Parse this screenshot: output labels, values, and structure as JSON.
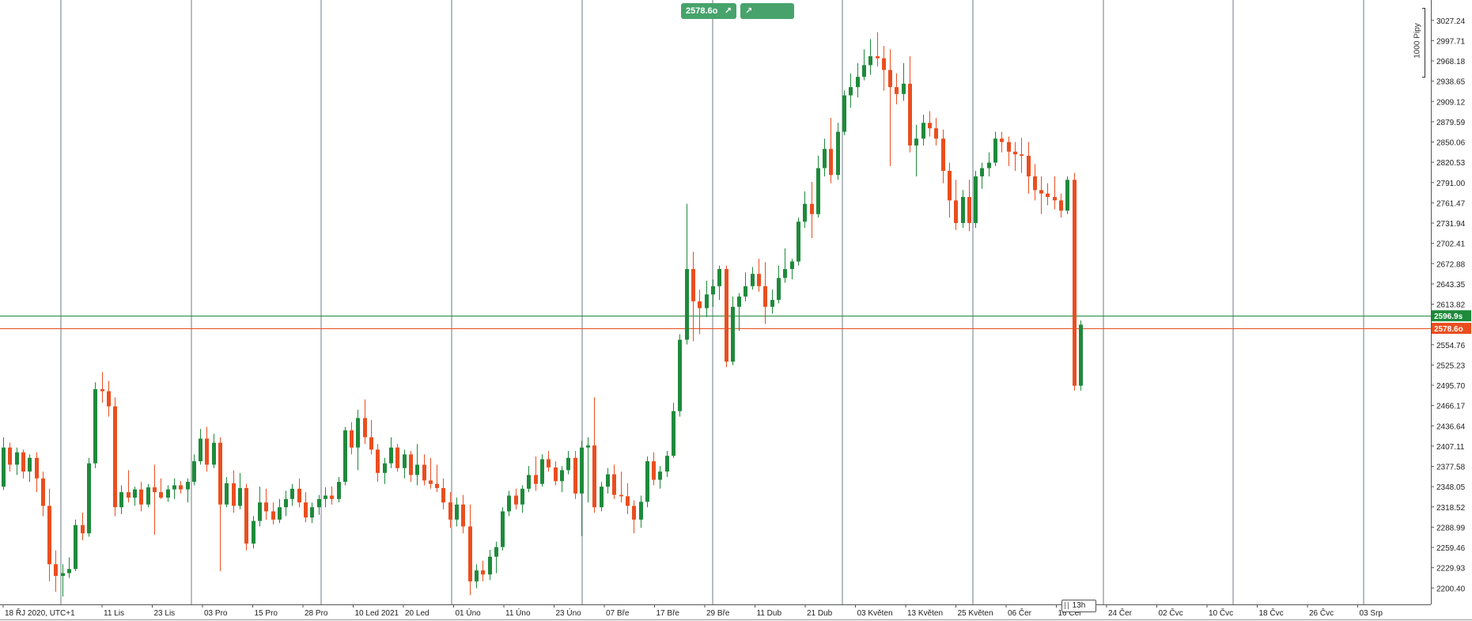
{
  "buttons": {
    "sell_label": "2578.6o",
    "buy_label": "2596.9s"
  },
  "pip_scale_label": "1000 Pipy",
  "timeframe_label": "13h",
  "colors": {
    "up": "#1e8a3b",
    "down": "#ea4e1f",
    "green_line": "#1e8a3b",
    "red_line": "#ea4e1f",
    "grid": "#6d7b86",
    "axis": "#222222"
  },
  "chart_data": {
    "type": "candlestick",
    "title": "",
    "xlabel": "",
    "ylabel": "",
    "ylim": [
      2176.5,
      3050
    ],
    "y_ticks": [
      2200.4,
      2229.93,
      2259.46,
      2288.99,
      2318.52,
      2348.05,
      2377.58,
      2407.11,
      2436.64,
      2466.17,
      2495.7,
      2525.23,
      2554.76,
      2613.82,
      2643.35,
      2672.88,
      2702.41,
      2731.94,
      2761.47,
      2791.0,
      2820.53,
      2850.06,
      2879.59,
      2909.12,
      2938.65,
      2968.18,
      2997.71,
      3027.24
    ],
    "x_labels": [
      "18 ŘJ 2020, UTC+1",
      "11 Lis",
      "23 Lis",
      "03 Pro",
      "15 Pro",
      "28 Pro",
      "10 Led 2021",
      "20 Led",
      "01 Úno",
      "11 Úno",
      "23 Úno",
      "07 Bře",
      "17 Bře",
      "29 Bře",
      "11 Dub",
      "21 Dub",
      "03 Květen",
      "13 Květen",
      "25 Květen",
      "06 Čer",
      "16 Čer",
      "24 Čer",
      "02 Čvc",
      "10 Čvc",
      "18 Čvc",
      "26 Čvc",
      "03 Srp"
    ],
    "separators": 10,
    "lines": [
      {
        "name": "buy",
        "price": 2596.9,
        "label": "2596.9s",
        "color": "#1e8a3b"
      },
      {
        "name": "sell",
        "price": 2578.6,
        "label": "2578.6o",
        "color": "#ea4e1f"
      }
    ],
    "candles": [
      [
        2348,
        2420,
        2343,
        2405
      ],
      [
        2405,
        2412,
        2370,
        2380
      ],
      [
        2380,
        2405,
        2365,
        2398
      ],
      [
        2398,
        2402,
        2360,
        2370
      ],
      [
        2370,
        2395,
        2355,
        2390
      ],
      [
        2390,
        2398,
        2340,
        2360
      ],
      [
        2360,
        2370,
        2305,
        2320
      ],
      [
        2320,
        2345,
        2210,
        2235
      ],
      [
        2235,
        2255,
        2195,
        2218
      ],
      [
        2218,
        2235,
        2188,
        2222
      ],
      [
        2222,
        2245,
        2215,
        2228
      ],
      [
        2228,
        2300,
        2225,
        2292
      ],
      [
        2292,
        2310,
        2270,
        2280
      ],
      [
        2280,
        2390,
        2275,
        2382
      ],
      [
        2382,
        2500,
        2375,
        2490
      ],
      [
        2490,
        2515,
        2470,
        2487
      ],
      [
        2487,
        2502,
        2450,
        2465
      ],
      [
        2465,
        2478,
        2305,
        2318
      ],
      [
        2318,
        2350,
        2308,
        2340
      ],
      [
        2340,
        2372,
        2325,
        2332
      ],
      [
        2332,
        2348,
        2320,
        2344
      ],
      [
        2344,
        2355,
        2312,
        2322
      ],
      [
        2322,
        2352,
        2318,
        2347
      ],
      [
        2347,
        2380,
        2278,
        2340
      ],
      [
        2340,
        2360,
        2330,
        2332
      ],
      [
        2332,
        2350,
        2326,
        2344
      ],
      [
        2344,
        2360,
        2330,
        2350
      ],
      [
        2350,
        2356,
        2338,
        2344
      ],
      [
        2344,
        2360,
        2325,
        2355
      ],
      [
        2355,
        2395,
        2350,
        2385
      ],
      [
        2385,
        2432,
        2380,
        2418
      ],
      [
        2418,
        2435,
        2370,
        2380
      ],
      [
        2380,
        2425,
        2375,
        2412
      ],
      [
        2412,
        2420,
        2225,
        2322
      ],
      [
        2322,
        2362,
        2318,
        2353
      ],
      [
        2353,
        2372,
        2310,
        2320
      ],
      [
        2320,
        2368,
        2315,
        2346
      ],
      [
        2346,
        2352,
        2255,
        2265
      ],
      [
        2265,
        2305,
        2258,
        2298
      ],
      [
        2298,
        2348,
        2290,
        2325
      ],
      [
        2325,
        2345,
        2300,
        2312
      ],
      [
        2312,
        2325,
        2293,
        2300
      ],
      [
        2300,
        2330,
        2295,
        2318
      ],
      [
        2318,
        2342,
        2305,
        2330
      ],
      [
        2330,
        2352,
        2320,
        2345
      ],
      [
        2345,
        2360,
        2318,
        2325
      ],
      [
        2325,
        2340,
        2296,
        2303
      ],
      [
        2303,
        2325,
        2295,
        2318
      ],
      [
        2318,
        2336,
        2307,
        2330
      ],
      [
        2330,
        2347,
        2318,
        2335
      ],
      [
        2335,
        2348,
        2322,
        2330
      ],
      [
        2330,
        2362,
        2325,
        2355
      ],
      [
        2355,
        2435,
        2350,
        2430
      ],
      [
        2430,
        2442,
        2395,
        2405
      ],
      [
        2405,
        2460,
        2372,
        2448
      ],
      [
        2448,
        2475,
        2410,
        2420
      ],
      [
        2420,
        2445,
        2395,
        2402
      ],
      [
        2402,
        2410,
        2355,
        2368
      ],
      [
        2368,
        2390,
        2352,
        2382
      ],
      [
        2382,
        2420,
        2375,
        2405
      ],
      [
        2405,
        2410,
        2370,
        2375
      ],
      [
        2375,
        2402,
        2360,
        2395
      ],
      [
        2395,
        2400,
        2355,
        2365
      ],
      [
        2365,
        2410,
        2350,
        2380
      ],
      [
        2380,
        2395,
        2350,
        2357
      ],
      [
        2357,
        2390,
        2345,
        2352
      ],
      [
        2352,
        2380,
        2340,
        2346
      ],
      [
        2346,
        2360,
        2315,
        2325
      ],
      [
        2325,
        2340,
        2288,
        2300
      ],
      [
        2300,
        2332,
        2290,
        2322
      ],
      [
        2322,
        2336,
        2280,
        2290
      ],
      [
        2290,
        2322,
        2190,
        2210
      ],
      [
        2210,
        2235,
        2200,
        2226
      ],
      [
        2226,
        2240,
        2210,
        2220
      ],
      [
        2220,
        2256,
        2212,
        2246
      ],
      [
        2246,
        2268,
        2222,
        2260
      ],
      [
        2260,
        2318,
        2255,
        2312
      ],
      [
        2312,
        2342,
        2305,
        2335
      ],
      [
        2335,
        2345,
        2315,
        2322
      ],
      [
        2322,
        2350,
        2310,
        2345
      ],
      [
        2345,
        2378,
        2340,
        2365
      ],
      [
        2365,
        2392,
        2342,
        2352
      ],
      [
        2352,
        2395,
        2348,
        2388
      ],
      [
        2388,
        2400,
        2370,
        2376
      ],
      [
        2376,
        2385,
        2350,
        2356
      ],
      [
        2356,
        2378,
        2340,
        2372
      ],
      [
        2372,
        2400,
        2366,
        2390
      ],
      [
        2390,
        2400,
        2330,
        2338
      ],
      [
        2338,
        2415,
        2276,
        2405
      ],
      [
        2405,
        2420,
        2325,
        2408
      ],
      [
        2408,
        2478,
        2310,
        2318
      ],
      [
        2318,
        2355,
        2312,
        2348
      ],
      [
        2348,
        2375,
        2338,
        2366
      ],
      [
        2366,
        2380,
        2330,
        2336
      ],
      [
        2336,
        2370,
        2325,
        2334
      ],
      [
        2334,
        2353,
        2308,
        2320
      ],
      [
        2320,
        2328,
        2280,
        2300
      ],
      [
        2300,
        2335,
        2288,
        2326
      ],
      [
        2326,
        2392,
        2318,
        2385
      ],
      [
        2385,
        2398,
        2350,
        2358
      ],
      [
        2358,
        2378,
        2345,
        2370
      ],
      [
        2370,
        2400,
        2362,
        2393
      ],
      [
        2393,
        2470,
        2390,
        2458
      ],
      [
        2458,
        2570,
        2450,
        2562
      ],
      [
        2562,
        2760,
        2555,
        2665
      ],
      [
        2665,
        2690,
        2560,
        2618
      ],
      [
        2618,
        2635,
        2570,
        2608
      ],
      [
        2608,
        2648,
        2595,
        2628
      ],
      [
        2628,
        2650,
        2610,
        2640
      ],
      [
        2640,
        2670,
        2620,
        2665
      ],
      [
        2665,
        2670,
        2522,
        2530
      ],
      [
        2530,
        2625,
        2525,
        2610
      ],
      [
        2610,
        2630,
        2575,
        2625
      ],
      [
        2625,
        2660,
        2618,
        2640
      ],
      [
        2640,
        2668,
        2635,
        2658
      ],
      [
        2658,
        2680,
        2632,
        2640
      ],
      [
        2640,
        2675,
        2585,
        2610
      ],
      [
        2610,
        2635,
        2600,
        2620
      ],
      [
        2620,
        2670,
        2615,
        2652
      ],
      [
        2652,
        2695,
        2645,
        2665
      ],
      [
        2665,
        2680,
        2650,
        2676
      ],
      [
        2676,
        2740,
        2670,
        2734
      ],
      [
        2734,
        2778,
        2725,
        2760
      ],
      [
        2760,
        2792,
        2710,
        2745
      ],
      [
        2745,
        2830,
        2740,
        2812
      ],
      [
        2812,
        2855,
        2800,
        2840
      ],
      [
        2840,
        2885,
        2790,
        2802
      ],
      [
        2802,
        2878,
        2795,
        2865
      ],
      [
        2865,
        2925,
        2860,
        2918
      ],
      [
        2918,
        2950,
        2900,
        2930
      ],
      [
        2930,
        2965,
        2915,
        2945
      ],
      [
        2945,
        2985,
        2940,
        2962
      ],
      [
        2962,
        3000,
        2948,
        2975
      ],
      [
        2975,
        3010,
        2960,
        2972
      ],
      [
        2972,
        2990,
        2925,
        2955
      ],
      [
        2955,
        2985,
        2815,
        2930
      ],
      [
        2930,
        2950,
        2905,
        2920
      ],
      [
        2920,
        2965,
        2910,
        2935
      ],
      [
        2935,
        2975,
        2835,
        2845
      ],
      [
        2845,
        2875,
        2800,
        2855
      ],
      [
        2855,
        2890,
        2845,
        2878
      ],
      [
        2878,
        2895,
        2858,
        2870
      ],
      [
        2870,
        2885,
        2845,
        2855
      ],
      [
        2855,
        2868,
        2790,
        2808
      ],
      [
        2808,
        2820,
        2740,
        2765
      ],
      [
        2765,
        2795,
        2722,
        2732
      ],
      [
        2732,
        2780,
        2725,
        2770
      ],
      [
        2770,
        2795,
        2720,
        2732
      ],
      [
        2732,
        2808,
        2725,
        2800
      ],
      [
        2800,
        2820,
        2782,
        2812
      ],
      [
        2812,
        2835,
        2800,
        2820
      ],
      [
        2820,
        2865,
        2815,
        2855
      ],
      [
        2855,
        2865,
        2835,
        2850
      ],
      [
        2850,
        2858,
        2815,
        2836
      ],
      [
        2836,
        2850,
        2808,
        2832
      ],
      [
        2832,
        2856,
        2805,
        2830
      ],
      [
        2830,
        2850,
        2775,
        2800
      ],
      [
        2800,
        2818,
        2765,
        2780
      ],
      [
        2780,
        2800,
        2745,
        2775
      ],
      [
        2775,
        2790,
        2758,
        2770
      ],
      [
        2770,
        2800,
        2752,
        2765
      ],
      [
        2765,
        2775,
        2740,
        2750
      ],
      [
        2750,
        2800,
        2745,
        2795
      ],
      [
        2795,
        2805,
        2488,
        2495
      ],
      [
        2495,
        2590,
        2488,
        2584
      ]
    ]
  }
}
